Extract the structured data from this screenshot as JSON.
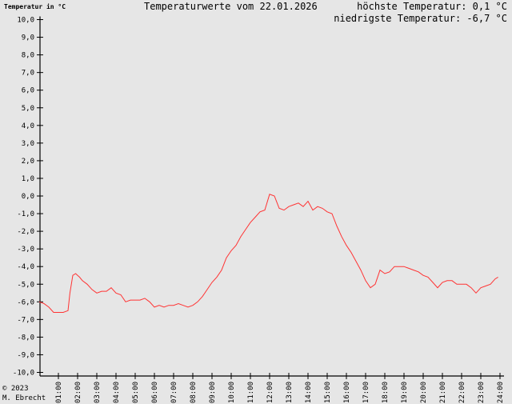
{
  "header": {
    "y_axis_label": "Temperatur in °C",
    "title": "Temperaturwerte vom 22.01.2026",
    "max_text": "höchste Temperatur: 0,1 °C",
    "min_text": "niedrigste Temperatur: -6,7 °C"
  },
  "footer": {
    "copyright": "© 2023",
    "author": "M. Ebrecht"
  },
  "colors": {
    "background": "#e6e6e6",
    "line": "#ff3333",
    "axis": "#000000"
  },
  "chart_data": {
    "type": "line",
    "title": "Temperaturwerte vom 22.01.2026",
    "xlabel": "",
    "ylabel": "Temperatur in °C",
    "ylim": [
      -10,
      10
    ],
    "xlim": [
      0,
      24
    ],
    "grid": false,
    "legend": "none",
    "y_ticks": [
      "10,0",
      "9,0",
      "8,0",
      "7,0",
      "6,0",
      "5,0",
      "4,0",
      "3,0",
      "2,0",
      "1,0",
      "0,0",
      "-1,0",
      "-2,0",
      "-3,0",
      "-4,0",
      "-5,0",
      "-6,0",
      "-7,0",
      "-8,0",
      "-9,0",
      "-10,0"
    ],
    "x_ticks": [
      "01:00",
      "02:00",
      "03:00",
      "04:00",
      "05:00",
      "06:00",
      "07:00",
      "08:00",
      "09:00",
      "10:00",
      "11:00",
      "12:00",
      "13:00",
      "14:00",
      "15:00",
      "16:00",
      "17:00",
      "18:00",
      "19:00",
      "20:00",
      "21:00",
      "22:00",
      "23:00",
      "24:00"
    ],
    "annotations": [
      "höchste Temperatur: 0,1 °C",
      "niedrigste Temperatur: -6,7 °C"
    ],
    "series": [
      {
        "name": "Temperatur",
        "x": [
          0.0,
          0.25,
          0.5,
          0.75,
          1.0,
          1.25,
          1.5,
          1.6,
          1.75,
          1.9,
          2.0,
          2.1,
          2.25,
          2.5,
          2.75,
          3.0,
          3.25,
          3.5,
          3.75,
          4.0,
          4.25,
          4.5,
          4.75,
          5.0,
          5.25,
          5.5,
          5.75,
          6.0,
          6.25,
          6.5,
          6.75,
          7.0,
          7.25,
          7.5,
          7.75,
          8.0,
          8.25,
          8.5,
          8.75,
          9.0,
          9.25,
          9.5,
          9.75,
          10.0,
          10.25,
          10.5,
          10.75,
          11.0,
          11.25,
          11.5,
          11.75,
          12.0,
          12.25,
          12.5,
          12.75,
          13.0,
          13.25,
          13.5,
          13.75,
          14.0,
          14.25,
          14.5,
          14.75,
          15.0,
          15.25,
          15.5,
          15.75,
          16.0,
          16.25,
          16.5,
          16.75,
          17.0,
          17.25,
          17.5,
          17.75,
          18.0,
          18.25,
          18.5,
          18.75,
          19.0,
          19.25,
          19.5,
          19.75,
          20.0,
          20.25,
          20.5,
          20.75,
          21.0,
          21.25,
          21.5,
          21.75,
          22.0,
          22.25,
          22.5,
          22.75,
          23.0,
          23.25,
          23.5,
          23.75,
          23.9
        ],
        "values": [
          -6.0,
          -6.1,
          -6.3,
          -6.6,
          -6.6,
          -6.6,
          -6.5,
          -5.5,
          -4.5,
          -4.4,
          -4.5,
          -4.6,
          -4.8,
          -5.0,
          -5.3,
          -5.5,
          -5.4,
          -5.4,
          -5.2,
          -5.5,
          -5.6,
          -6.0,
          -5.9,
          -5.9,
          -5.9,
          -5.8,
          -6.0,
          -6.3,
          -6.2,
          -6.3,
          -6.2,
          -6.2,
          -6.1,
          -6.2,
          -6.3,
          -6.2,
          -6.0,
          -5.7,
          -5.3,
          -4.9,
          -4.6,
          -4.2,
          -3.5,
          -3.1,
          -2.8,
          -2.3,
          -1.9,
          -1.5,
          -1.2,
          -0.9,
          -0.8,
          0.1,
          0.0,
          -0.7,
          -0.8,
          -0.6,
          -0.5,
          -0.4,
          -0.6,
          -0.3,
          -0.8,
          -0.6,
          -0.7,
          -0.9,
          -1.0,
          -1.7,
          -2.3,
          -2.8,
          -3.2,
          -3.7,
          -4.2,
          -4.8,
          -5.2,
          -5.0,
          -4.2,
          -4.4,
          -4.3,
          -4.0,
          -4.0,
          -4.0,
          -4.1,
          -4.2,
          -4.3,
          -4.5,
          -4.6,
          -4.9,
          -5.2,
          -4.9,
          -4.8,
          -4.8,
          -5.0,
          -5.0,
          -5.0,
          -5.2,
          -5.5,
          -5.2,
          -5.1,
          -5.0,
          -4.7,
          -4.6
        ]
      }
    ]
  }
}
